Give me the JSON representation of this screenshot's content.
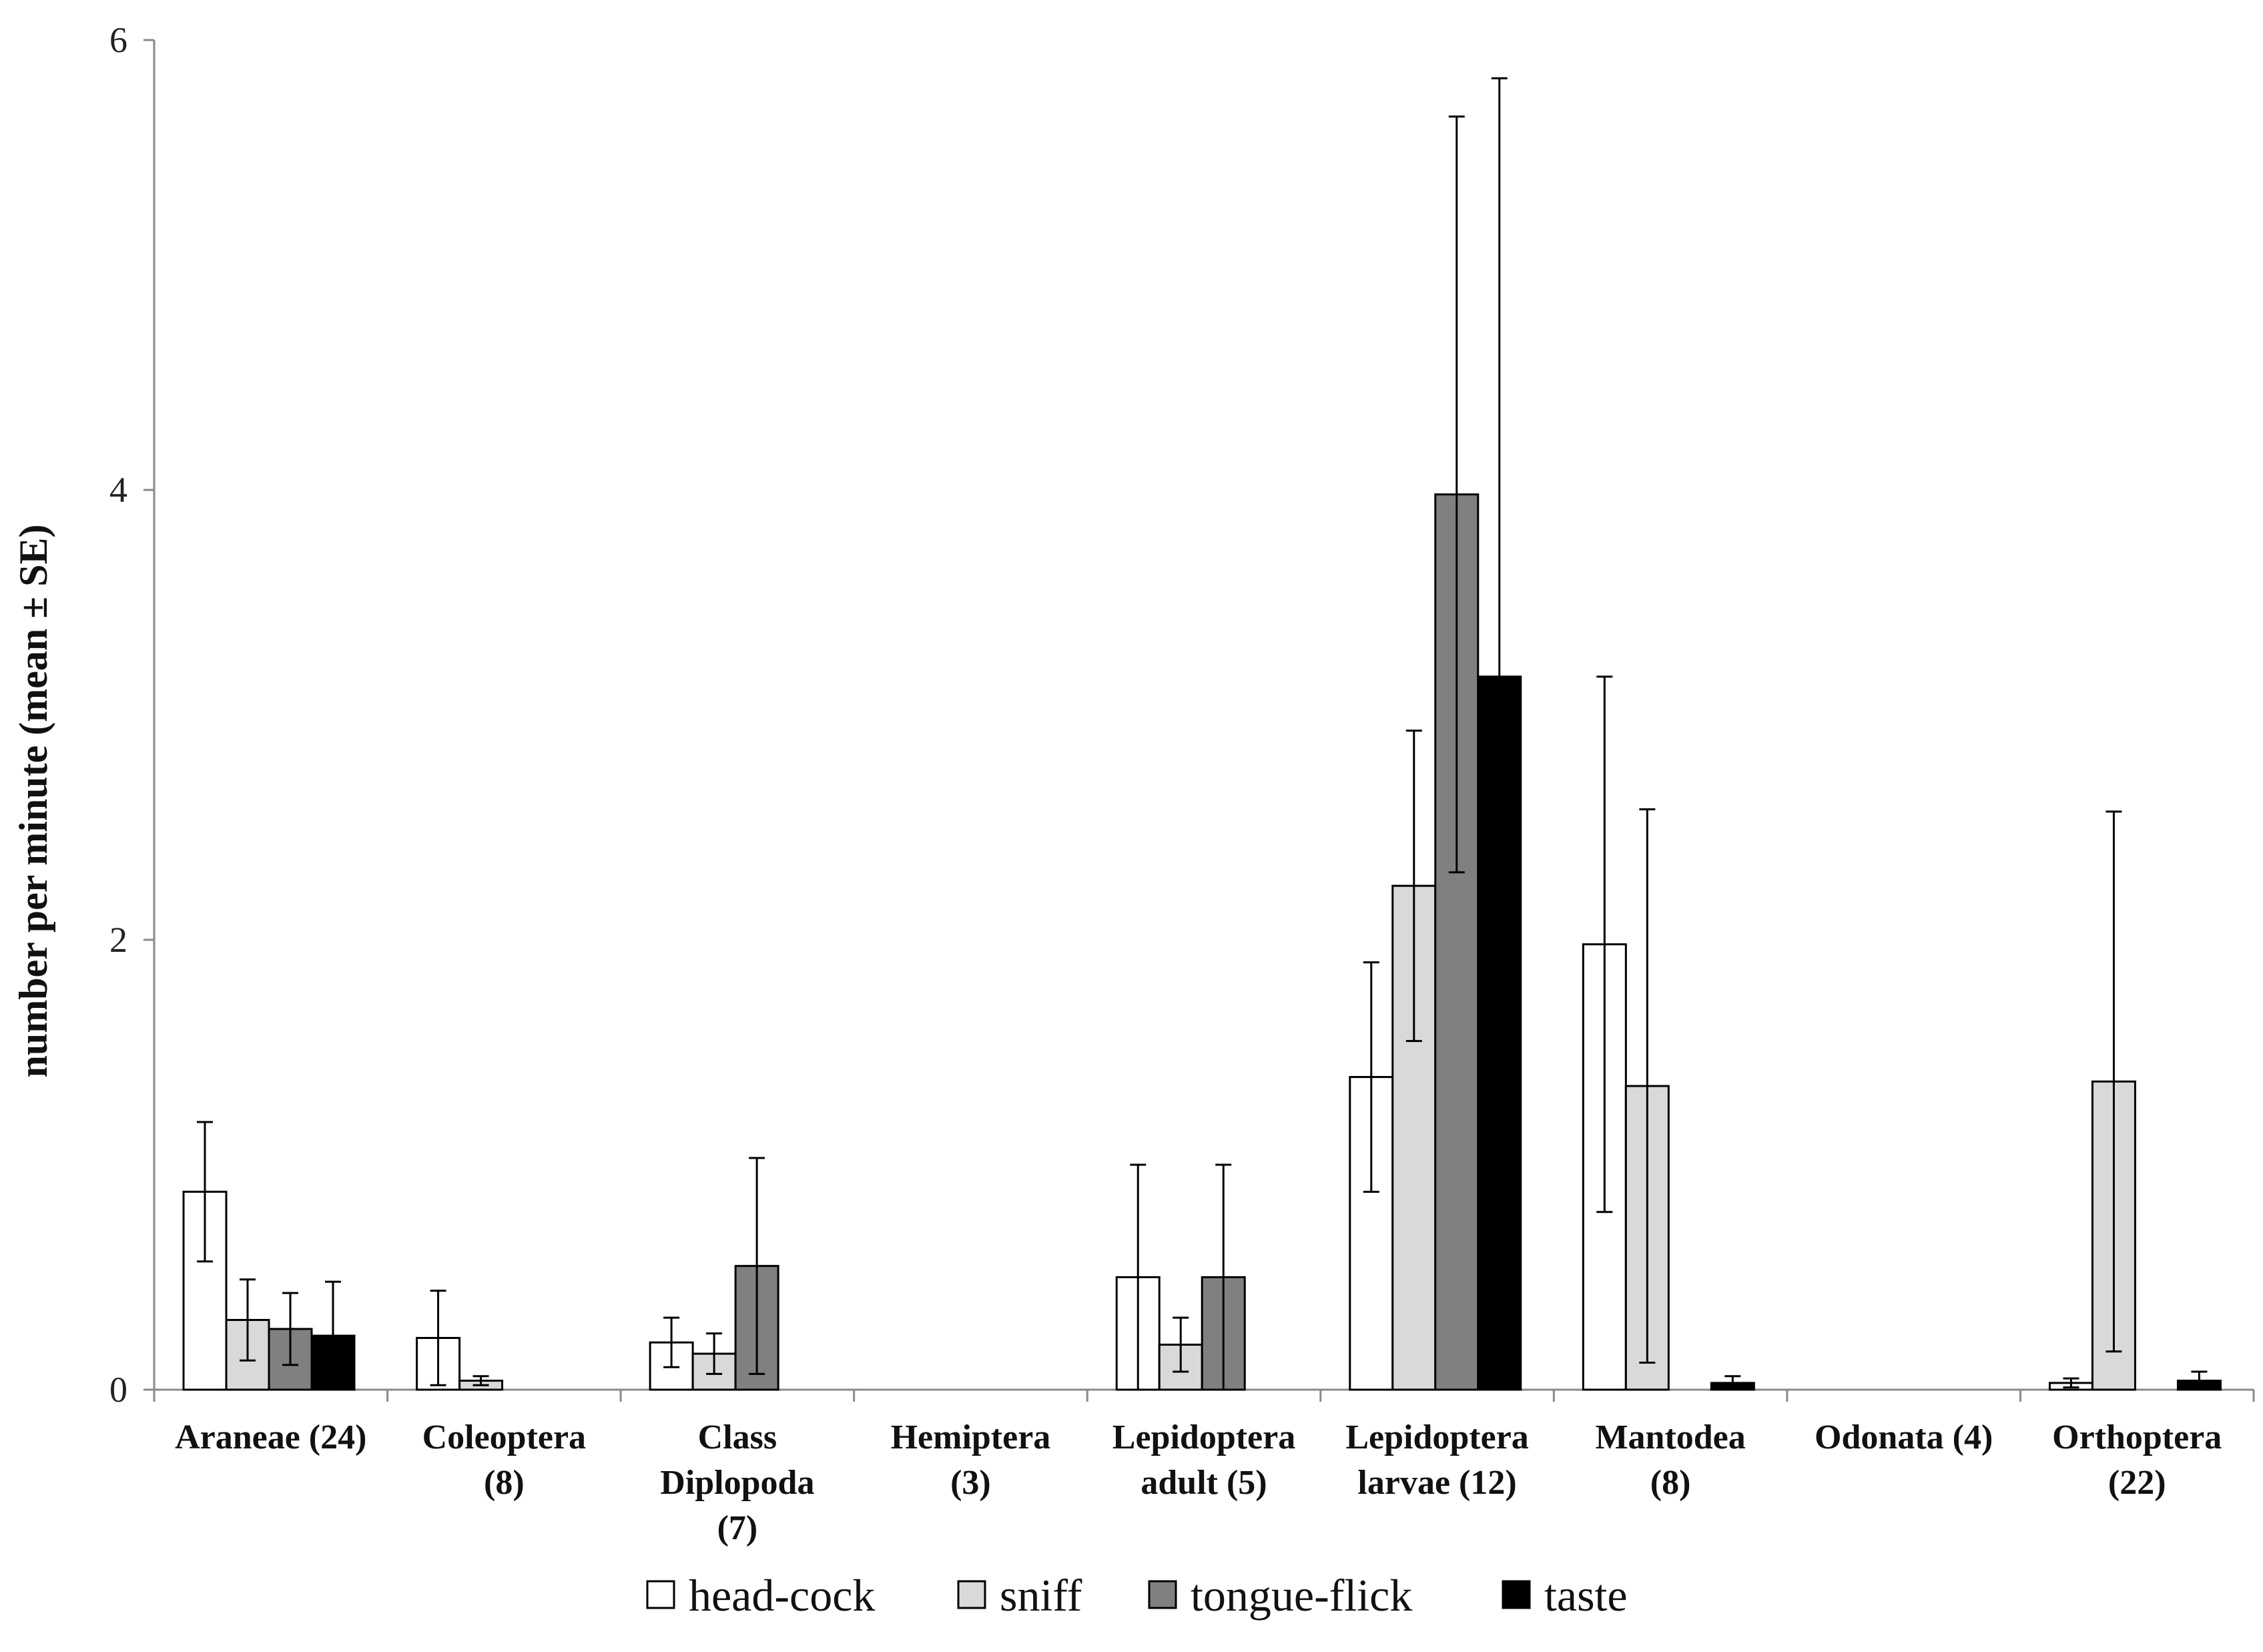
{
  "chart_data": {
    "type": "bar",
    "ylabel": "number per minute (mean ± SE)",
    "ylim": [
      0,
      6
    ],
    "yticks": [
      "0",
      "2",
      "4",
      "6"
    ],
    "grid": false,
    "legend_position": "bottom",
    "categories": [
      [
        "Araneae (24)"
      ],
      [
        "Coleoptera",
        "(8)"
      ],
      [
        "Class",
        "Diplopoda",
        "(7)"
      ],
      [
        "Hemiptera",
        "(3)"
      ],
      [
        "Lepidoptera",
        "adult (5)"
      ],
      [
        "Lepidoptera",
        "larvae (12)"
      ],
      [
        "Mantodea",
        "(8)"
      ],
      [
        "Odonata (4)"
      ],
      [
        "Orthoptera",
        "(22)"
      ]
    ],
    "series": [
      {
        "name": "head-cock",
        "color": "#ffffff",
        "values": [
          0.88,
          0.23,
          0.21,
          0,
          0.5,
          1.39,
          1.98,
          0,
          0.03
        ],
        "errors": [
          0.31,
          0.21,
          0.11,
          0,
          0.5,
          0.51,
          1.19,
          0,
          0.02
        ]
      },
      {
        "name": "sniff",
        "color": "#d9d9d9",
        "values": [
          0.31,
          0.04,
          0.16,
          0,
          0.2,
          2.24,
          1.35,
          0,
          1.37
        ],
        "errors": [
          0.18,
          0.02,
          0.09,
          0,
          0.12,
          0.69,
          1.23,
          0,
          1.2
        ]
      },
      {
        "name": "tongue-flick",
        "color": "#808080",
        "values": [
          0.27,
          0,
          0.55,
          0,
          0.5,
          3.98,
          0,
          0,
          0
        ],
        "errors": [
          0.16,
          0,
          0.48,
          0,
          0.5,
          1.68,
          0,
          0,
          0
        ]
      },
      {
        "name": "taste",
        "color": "#000000",
        "values": [
          0.24,
          0,
          0,
          0,
          0,
          3.17,
          0.03,
          0,
          0.04
        ],
        "errors": [
          0.24,
          0,
          0,
          0,
          0,
          2.66,
          0.03,
          0,
          0.04
        ]
      }
    ]
  }
}
